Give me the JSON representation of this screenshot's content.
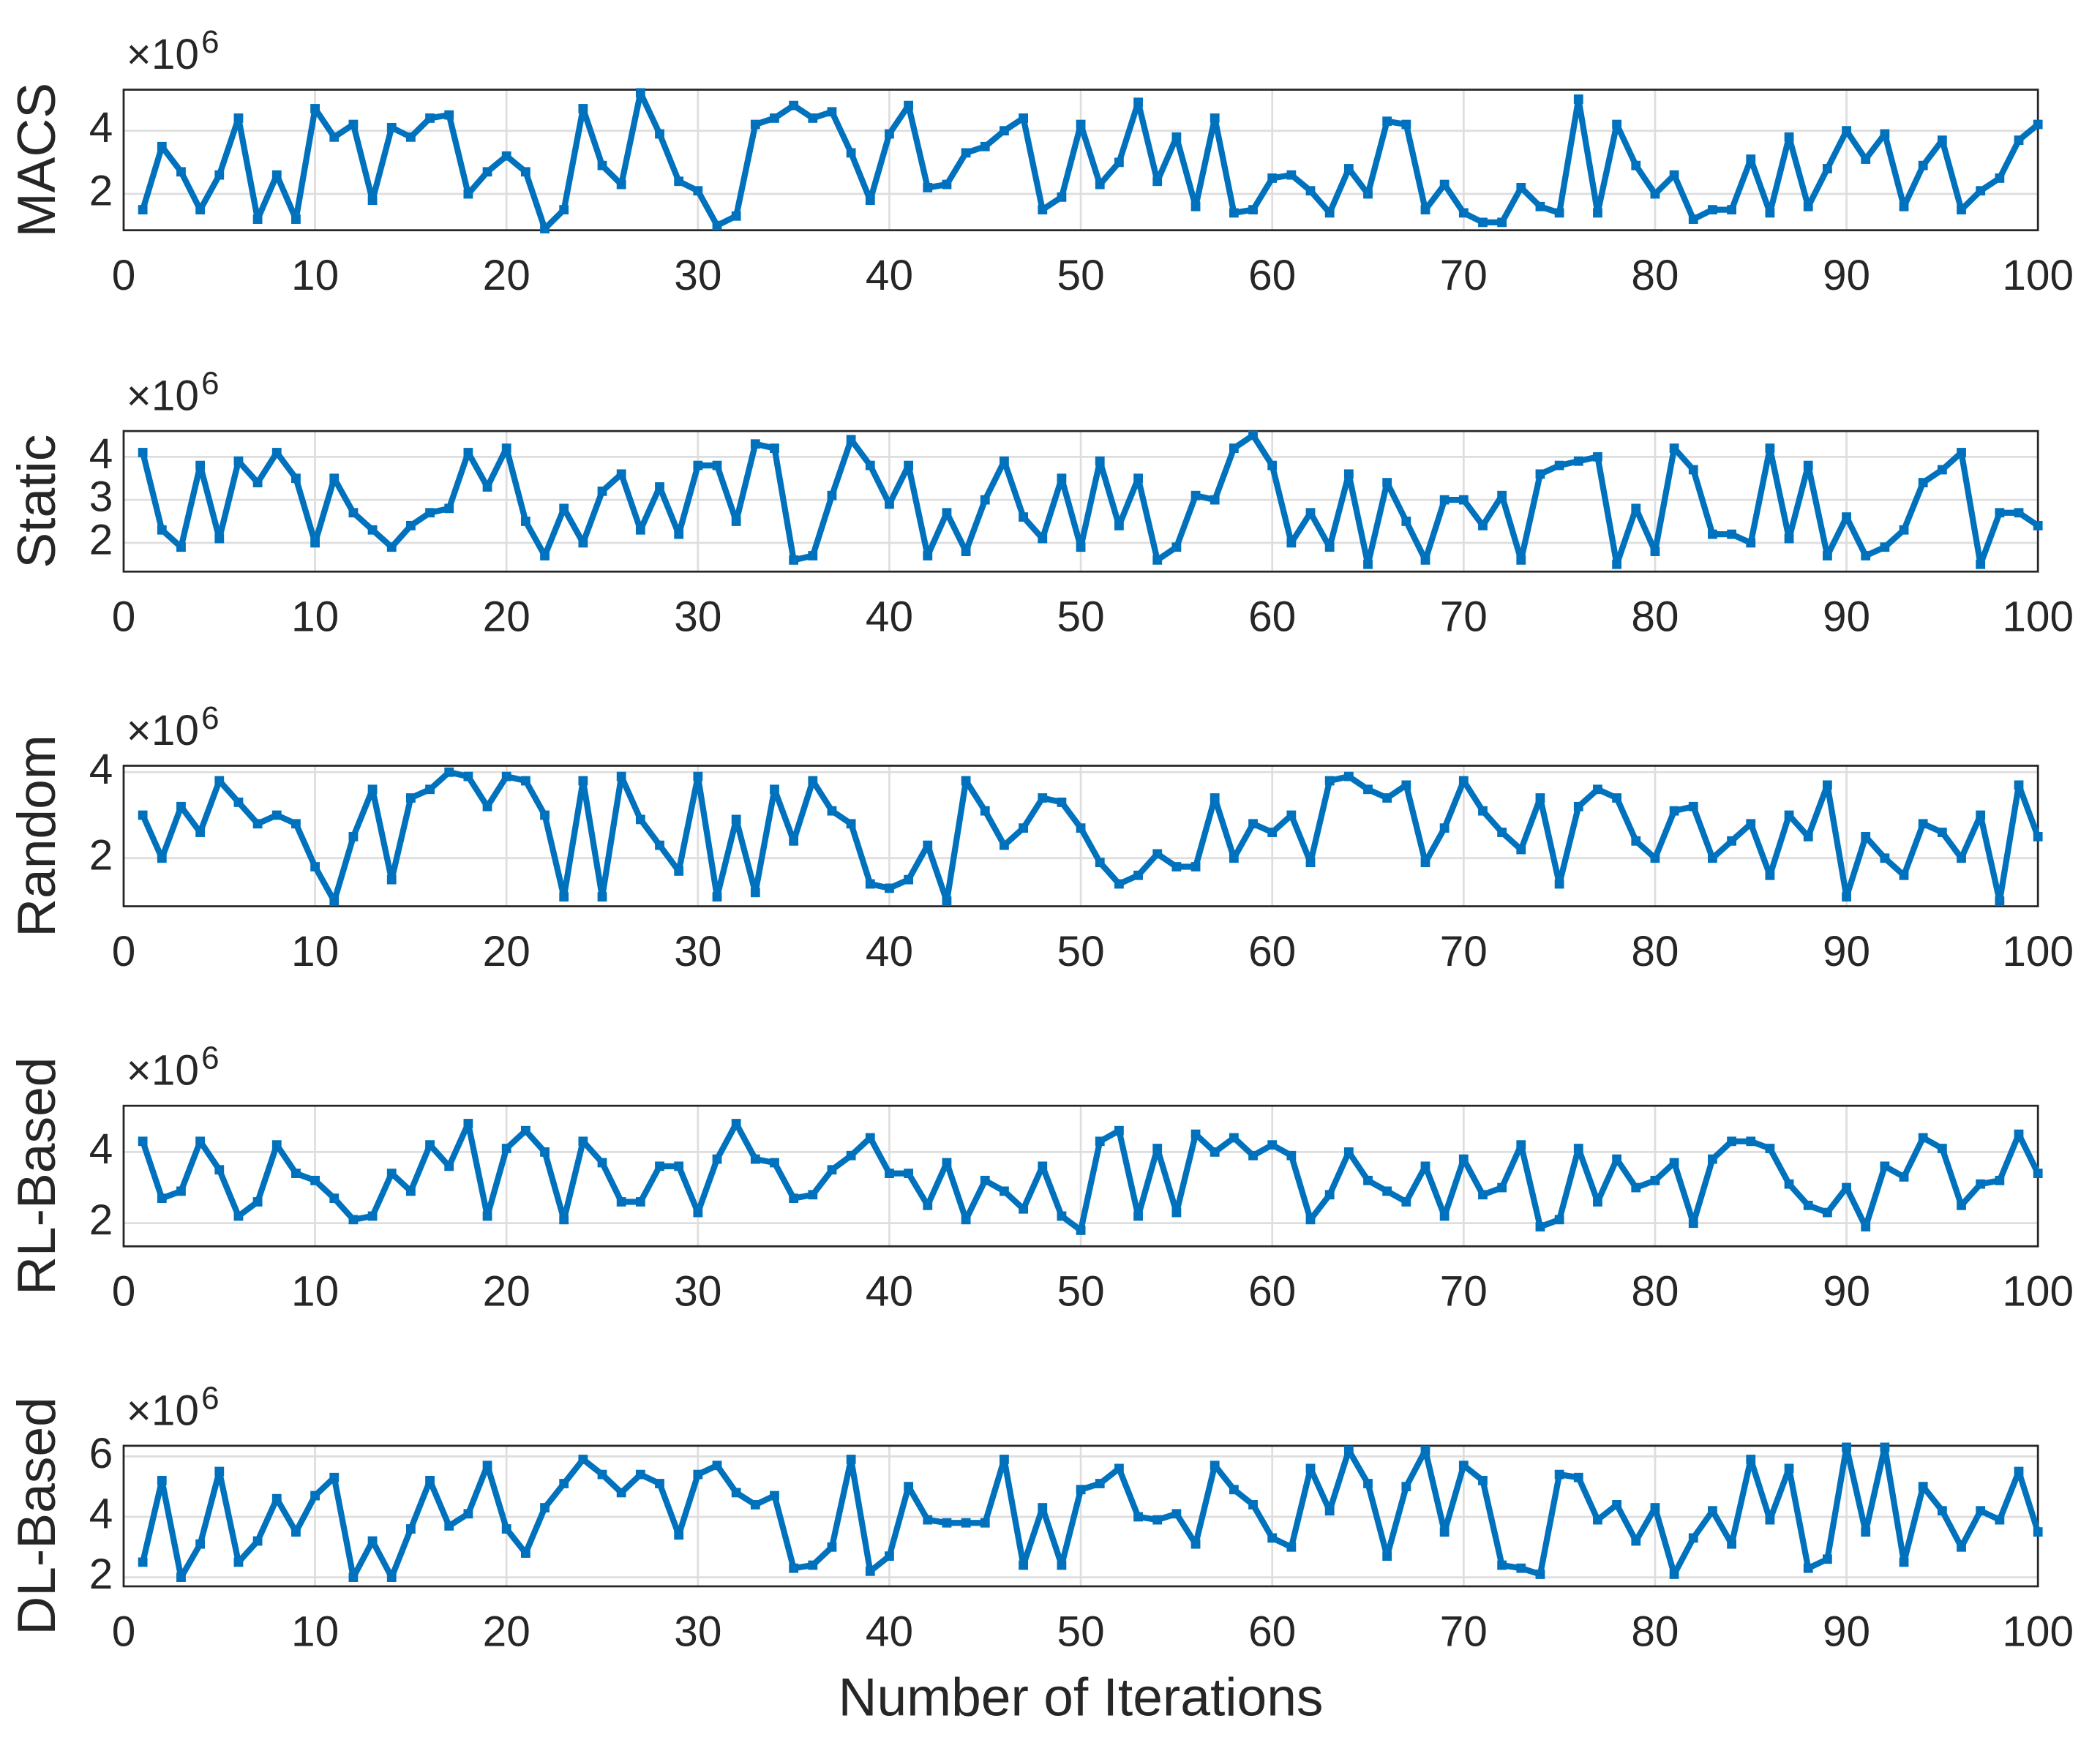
{
  "chart_data": [
    {
      "type": "line",
      "ylabel": "MACS",
      "y_multiplier": "×10",
      "y_exponent": "6",
      "x": [
        1,
        2,
        3,
        4,
        5,
        6,
        7,
        8,
        9,
        10,
        11,
        12,
        13,
        14,
        15,
        16,
        17,
        18,
        19,
        20,
        21,
        22,
        23,
        24,
        25,
        26,
        27,
        28,
        29,
        30,
        31,
        32,
        33,
        34,
        35,
        36,
        37,
        38,
        39,
        40,
        41,
        42,
        43,
        44,
        45,
        46,
        47,
        48,
        49,
        50,
        51,
        52,
        53,
        54,
        55,
        56,
        57,
        58,
        59,
        60,
        61,
        62,
        63,
        64,
        65,
        66,
        67,
        68,
        69,
        70,
        71,
        72,
        73,
        74,
        75,
        76,
        77,
        78,
        79,
        80,
        81,
        82,
        83,
        84,
        85,
        86,
        87,
        88,
        89,
        90,
        91,
        92,
        93,
        94,
        95,
        96,
        97,
        98,
        99,
        100
      ],
      "values": [
        1.5,
        3.5,
        2.7,
        1.5,
        2.6,
        4.4,
        1.2,
        2.6,
        1.2,
        4.7,
        3.8,
        4.2,
        1.8,
        4.1,
        3.8,
        4.4,
        4.5,
        2.0,
        2.7,
        3.2,
        2.7,
        0.9,
        1.5,
        4.7,
        2.9,
        2.3,
        5.2,
        3.9,
        2.4,
        2.1,
        1.0,
        1.3,
        4.2,
        4.4,
        4.8,
        4.4,
        4.6,
        3.3,
        1.8,
        3.9,
        4.8,
        2.2,
        2.3,
        3.3,
        3.5,
        4.0,
        4.4,
        1.5,
        1.9,
        4.2,
        2.3,
        3.0,
        4.9,
        2.4,
        3.8,
        1.6,
        4.4,
        1.4,
        1.5,
        2.5,
        2.6,
        2.1,
        1.4,
        2.8,
        2.0,
        4.3,
        4.2,
        1.5,
        2.3,
        1.4,
        1.1,
        1.1,
        2.2,
        1.6,
        1.4,
        5.0,
        1.4,
        4.2,
        2.9,
        2.0,
        2.6,
        1.2,
        1.5,
        1.5,
        3.1,
        1.4,
        3.8,
        1.6,
        2.8,
        4.0,
        3.1,
        3.9,
        1.6,
        2.9,
        3.7,
        1.5,
        2.1,
        2.5,
        3.7,
        4.2
      ],
      "color": "#0072bd",
      "xlim": [
        0,
        100
      ],
      "xticks": [
        0,
        10,
        20,
        30,
        40,
        50,
        60,
        70,
        80,
        90,
        100
      ],
      "ylim": [
        0.85,
        5.3
      ],
      "yticks": [
        2,
        4
      ],
      "grid": true
    },
    {
      "type": "line",
      "ylabel": "Static",
      "y_multiplier": "×10",
      "y_exponent": "6",
      "x": [
        1,
        2,
        3,
        4,
        5,
        6,
        7,
        8,
        9,
        10,
        11,
        12,
        13,
        14,
        15,
        16,
        17,
        18,
        19,
        20,
        21,
        22,
        23,
        24,
        25,
        26,
        27,
        28,
        29,
        30,
        31,
        32,
        33,
        34,
        35,
        36,
        37,
        38,
        39,
        40,
        41,
        42,
        43,
        44,
        45,
        46,
        47,
        48,
        49,
        50,
        51,
        52,
        53,
        54,
        55,
        56,
        57,
        58,
        59,
        60,
        61,
        62,
        63,
        64,
        65,
        66,
        67,
        68,
        69,
        70,
        71,
        72,
        73,
        74,
        75,
        76,
        77,
        78,
        79,
        80,
        81,
        82,
        83,
        84,
        85,
        86,
        87,
        88,
        89,
        90,
        91,
        92,
        93,
        94,
        95,
        96,
        97,
        98,
        99,
        100
      ],
      "values": [
        4.1,
        2.3,
        1.9,
        3.8,
        2.1,
        3.9,
        3.4,
        4.1,
        3.5,
        2.0,
        3.5,
        2.7,
        2.3,
        1.9,
        2.4,
        2.7,
        2.8,
        4.1,
        3.3,
        4.2,
        2.5,
        1.7,
        2.8,
        2.0,
        3.2,
        3.6,
        2.3,
        3.3,
        2.2,
        3.8,
        3.8,
        2.5,
        4.3,
        4.2,
        1.6,
        1.7,
        3.1,
        4.4,
        3.8,
        2.9,
        3.8,
        1.7,
        2.7,
        1.8,
        3.0,
        3.9,
        2.6,
        2.1,
        3.5,
        1.9,
        3.9,
        2.4,
        3.5,
        1.6,
        1.9,
        3.1,
        3.0,
        4.2,
        4.5,
        3.8,
        2.0,
        2.7,
        1.9,
        3.6,
        1.5,
        3.4,
        2.5,
        1.6,
        3.0,
        3.0,
        2.4,
        3.1,
        1.6,
        3.6,
        3.8,
        3.9,
        4.0,
        1.5,
        2.8,
        1.8,
        4.2,
        3.7,
        2.2,
        2.2,
        2.0,
        4.2,
        2.1,
        3.8,
        1.7,
        2.6,
        1.7,
        1.9,
        2.3,
        3.4,
        3.7,
        4.1,
        1.5,
        2.7,
        2.7,
        2.4
      ],
      "color": "#0072bd",
      "xlim": [
        0,
        100
      ],
      "xticks": [
        0,
        10,
        20,
        30,
        40,
        50,
        60,
        70,
        80,
        90,
        100
      ],
      "ylim": [
        1.33,
        4.6
      ],
      "yticks": [
        2,
        3,
        4
      ],
      "grid": true
    },
    {
      "type": "line",
      "ylabel": "Random",
      "y_multiplier": "×10",
      "y_exponent": "6",
      "x": [
        1,
        2,
        3,
        4,
        5,
        6,
        7,
        8,
        9,
        10,
        11,
        12,
        13,
        14,
        15,
        16,
        17,
        18,
        19,
        20,
        21,
        22,
        23,
        24,
        25,
        26,
        27,
        28,
        29,
        30,
        31,
        32,
        33,
        34,
        35,
        36,
        37,
        38,
        39,
        40,
        41,
        42,
        43,
        44,
        45,
        46,
        47,
        48,
        49,
        50,
        51,
        52,
        53,
        54,
        55,
        56,
        57,
        58,
        59,
        60,
        61,
        62,
        63,
        64,
        65,
        66,
        67,
        68,
        69,
        70,
        71,
        72,
        73,
        74,
        75,
        76,
        77,
        78,
        79,
        80,
        81,
        82,
        83,
        84,
        85,
        86,
        87,
        88,
        89,
        90,
        91,
        92,
        93,
        94,
        95,
        96,
        97,
        98,
        99,
        100
      ],
      "values": [
        3.0,
        2.0,
        3.2,
        2.6,
        3.8,
        3.3,
        2.8,
        3.0,
        2.8,
        1.8,
        1.0,
        2.5,
        3.6,
        1.5,
        3.4,
        3.6,
        4.0,
        3.9,
        3.2,
        3.9,
        3.8,
        3.0,
        1.1,
        3.8,
        1.1,
        3.9,
        2.9,
        2.3,
        1.7,
        3.9,
        1.1,
        2.9,
        1.2,
        3.6,
        2.4,
        3.8,
        3.1,
        2.8,
        1.4,
        1.3,
        1.5,
        2.3,
        1.0,
        3.8,
        3.1,
        2.3,
        2.7,
        3.4,
        3.3,
        2.7,
        1.9,
        1.4,
        1.6,
        2.1,
        1.8,
        1.8,
        3.4,
        2.0,
        2.8,
        2.6,
        3.0,
        1.9,
        3.8,
        3.9,
        3.6,
        3.4,
        3.7,
        1.9,
        2.7,
        3.8,
        3.1,
        2.6,
        2.2,
        3.4,
        1.4,
        3.2,
        3.6,
        3.4,
        2.4,
        2.0,
        3.1,
        3.2,
        2.0,
        2.4,
        2.8,
        1.6,
        3.0,
        2.5,
        3.7,
        1.1,
        2.5,
        2.0,
        1.6,
        2.8,
        2.6,
        2.0,
        3.0,
        1.0,
        3.7,
        2.5
      ],
      "color": "#0072bd",
      "xlim": [
        0,
        100
      ],
      "xticks": [
        0,
        10,
        20,
        30,
        40,
        50,
        60,
        70,
        80,
        90,
        100
      ],
      "ylim": [
        0.88,
        4.15
      ],
      "yticks": [
        2,
        4
      ],
      "grid": true
    },
    {
      "type": "line",
      "ylabel": "RL-Based",
      "y_multiplier": "×10",
      "y_exponent": "6",
      "x": [
        1,
        2,
        3,
        4,
        5,
        6,
        7,
        8,
        9,
        10,
        11,
        12,
        13,
        14,
        15,
        16,
        17,
        18,
        19,
        20,
        21,
        22,
        23,
        24,
        25,
        26,
        27,
        28,
        29,
        30,
        31,
        32,
        33,
        34,
        35,
        36,
        37,
        38,
        39,
        40,
        41,
        42,
        43,
        44,
        45,
        46,
        47,
        48,
        49,
        50,
        51,
        52,
        53,
        54,
        55,
        56,
        57,
        58,
        59,
        60,
        61,
        62,
        63,
        64,
        65,
        66,
        67,
        68,
        69,
        70,
        71,
        72,
        73,
        74,
        75,
        76,
        77,
        78,
        79,
        80,
        81,
        82,
        83,
        84,
        85,
        86,
        87,
        88,
        89,
        90,
        91,
        92,
        93,
        94,
        95,
        96,
        97,
        98,
        99,
        100
      ],
      "values": [
        4.3,
        2.7,
        2.9,
        4.3,
        3.5,
        2.2,
        2.6,
        4.2,
        3.4,
        3.2,
        2.7,
        2.1,
        2.2,
        3.4,
        2.9,
        4.2,
        3.6,
        4.8,
        2.2,
        4.1,
        4.6,
        4.0,
        2.1,
        4.3,
        3.7,
        2.6,
        2.6,
        3.6,
        3.6,
        2.3,
        3.8,
        4.8,
        3.8,
        3.7,
        2.7,
        2.8,
        3.5,
        3.9,
        4.4,
        3.4,
        3.4,
        2.5,
        3.7,
        2.1,
        3.2,
        2.9,
        2.4,
        3.6,
        2.2,
        1.8,
        4.3,
        4.6,
        2.2,
        4.1,
        2.3,
        4.5,
        4.0,
        4.4,
        3.9,
        4.2,
        3.9,
        2.1,
        2.8,
        4.0,
        3.2,
        2.9,
        2.6,
        3.6,
        2.2,
        3.8,
        2.8,
        3.0,
        4.2,
        1.9,
        2.1,
        4.1,
        2.6,
        3.8,
        3.0,
        3.2,
        3.7,
        2.0,
        3.8,
        4.3,
        4.3,
        4.1,
        3.1,
        2.5,
        2.3,
        3.0,
        1.9,
        3.6,
        3.3,
        4.4,
        4.1,
        2.5,
        3.1,
        3.2,
        4.5,
        3.4
      ],
      "color": "#0072bd",
      "xlim": [
        0,
        100
      ],
      "xticks": [
        0,
        10,
        20,
        30,
        40,
        50,
        60,
        70,
        80,
        90,
        100
      ],
      "ylim": [
        1.35,
        5.3
      ],
      "yticks": [
        2,
        4
      ],
      "grid": true
    },
    {
      "type": "line",
      "ylabel": "DL-Based",
      "y_multiplier": "×10",
      "y_exponent": "6",
      "xlabel": "Number of Iterations",
      "x": [
        1,
        2,
        3,
        4,
        5,
        6,
        7,
        8,
        9,
        10,
        11,
        12,
        13,
        14,
        15,
        16,
        17,
        18,
        19,
        20,
        21,
        22,
        23,
        24,
        25,
        26,
        27,
        28,
        29,
        30,
        31,
        32,
        33,
        34,
        35,
        36,
        37,
        38,
        39,
        40,
        41,
        42,
        43,
        44,
        45,
        46,
        47,
        48,
        49,
        50,
        51,
        52,
        53,
        54,
        55,
        56,
        57,
        58,
        59,
        60,
        61,
        62,
        63,
        64,
        65,
        66,
        67,
        68,
        69,
        70,
        71,
        72,
        73,
        74,
        75,
        76,
        77,
        78,
        79,
        80,
        81,
        82,
        83,
        84,
        85,
        86,
        87,
        88,
        89,
        90,
        91,
        92,
        93,
        94,
        95,
        96,
        97,
        98,
        99,
        100
      ],
      "values": [
        2.5,
        5.2,
        2.0,
        3.1,
        5.5,
        2.5,
        3.2,
        4.6,
        3.5,
        4.7,
        5.3,
        2.0,
        3.2,
        2.0,
        3.6,
        5.2,
        3.7,
        4.1,
        5.7,
        3.6,
        2.8,
        4.3,
        5.1,
        5.9,
        5.4,
        4.8,
        5.4,
        5.1,
        3.4,
        5.4,
        5.7,
        4.8,
        4.4,
        4.7,
        2.3,
        2.4,
        3.0,
        5.9,
        2.2,
        2.7,
        5.0,
        3.9,
        3.8,
        3.8,
        3.8,
        5.9,
        2.4,
        4.3,
        2.4,
        4.9,
        5.1,
        5.6,
        4.0,
        3.9,
        4.1,
        3.1,
        5.7,
        4.9,
        4.4,
        3.3,
        3.0,
        5.6,
        4.2,
        6.2,
        5.1,
        2.7,
        5.0,
        6.2,
        3.5,
        5.7,
        5.2,
        2.4,
        2.3,
        2.1,
        5.4,
        5.3,
        3.9,
        4.4,
        3.2,
        4.3,
        2.1,
        3.3,
        4.2,
        3.1,
        5.9,
        3.9,
        5.6,
        2.3,
        2.6,
        6.3,
        3.5,
        6.3,
        2.5,
        5.0,
        4.2,
        3.0,
        4.2,
        3.9,
        5.5,
        3.5
      ],
      "color": "#0072bd",
      "xlim": [
        0,
        100
      ],
      "xticks": [
        0,
        10,
        20,
        30,
        40,
        50,
        60,
        70,
        80,
        90,
        100
      ],
      "ylim": [
        1.7,
        6.35
      ],
      "yticks": [
        2,
        4,
        6
      ],
      "grid": true
    }
  ]
}
